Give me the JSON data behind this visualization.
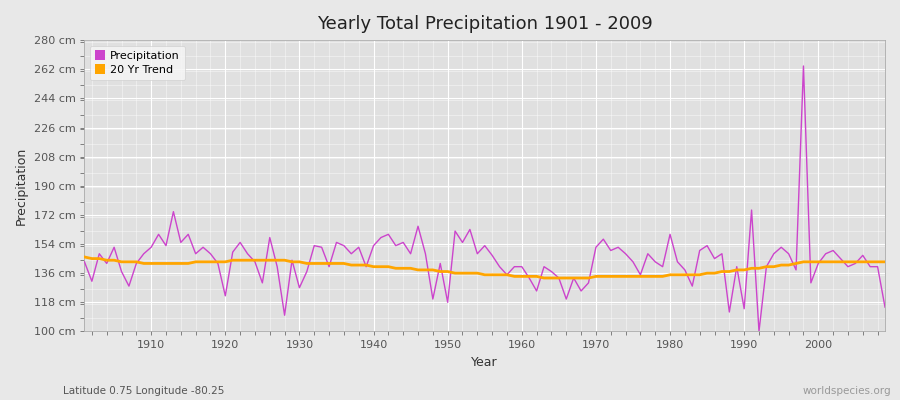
{
  "title": "Yearly Total Precipitation 1901 - 2009",
  "xlabel": "Year",
  "ylabel": "Precipitation",
  "subtitle": "Latitude 0.75 Longitude -80.25",
  "watermark": "worldspecies.org",
  "ylim": [
    100,
    280
  ],
  "yticks": [
    100,
    118,
    136,
    154,
    172,
    190,
    208,
    226,
    244,
    262,
    280
  ],
  "ytick_labels": [
    "100 cm",
    "118 cm",
    "136 cm",
    "154 cm",
    "172 cm",
    "190 cm",
    "208 cm",
    "226 cm",
    "244 cm",
    "262 cm",
    "280 cm"
  ],
  "xlim": [
    1901,
    2009
  ],
  "xticks": [
    1910,
    1920,
    1930,
    1940,
    1950,
    1960,
    1970,
    1980,
    1990,
    2000
  ],
  "precip_color": "#cc44cc",
  "trend_color": "#FFA500",
  "fig_bg_color": "#e8e8e8",
  "plot_bg_color": "#e0e0e0",
  "years": [
    1901,
    1902,
    1903,
    1904,
    1905,
    1906,
    1907,
    1908,
    1909,
    1910,
    1911,
    1912,
    1913,
    1914,
    1915,
    1916,
    1917,
    1918,
    1919,
    1920,
    1921,
    1922,
    1923,
    1924,
    1925,
    1926,
    1927,
    1928,
    1929,
    1930,
    1931,
    1932,
    1933,
    1934,
    1935,
    1936,
    1937,
    1938,
    1939,
    1940,
    1941,
    1942,
    1943,
    1944,
    1945,
    1946,
    1947,
    1948,
    1949,
    1950,
    1951,
    1952,
    1953,
    1954,
    1955,
    1956,
    1957,
    1958,
    1959,
    1960,
    1961,
    1962,
    1963,
    1964,
    1965,
    1966,
    1967,
    1968,
    1969,
    1970,
    1971,
    1972,
    1973,
    1974,
    1975,
    1976,
    1977,
    1978,
    1979,
    1980,
    1981,
    1982,
    1983,
    1984,
    1985,
    1986,
    1987,
    1988,
    1989,
    1990,
    1991,
    1992,
    1993,
    1994,
    1995,
    1996,
    1997,
    1998,
    1999,
    2000,
    2001,
    2002,
    2003,
    2004,
    2005,
    2006,
    2007,
    2008,
    2009
  ],
  "precip": [
    143,
    131,
    148,
    142,
    152,
    137,
    128,
    142,
    148,
    152,
    160,
    153,
    174,
    155,
    160,
    148,
    152,
    148,
    142,
    122,
    149,
    155,
    148,
    143,
    130,
    158,
    140,
    110,
    144,
    127,
    137,
    153,
    152,
    140,
    155,
    153,
    148,
    152,
    140,
    153,
    158,
    160,
    153,
    155,
    148,
    165,
    148,
    120,
    142,
    118,
    162,
    155,
    163,
    148,
    153,
    147,
    140,
    135,
    140,
    140,
    133,
    125,
    140,
    137,
    133,
    120,
    133,
    125,
    130,
    152,
    157,
    150,
    152,
    148,
    143,
    135,
    148,
    143,
    140,
    160,
    143,
    138,
    128,
    150,
    153,
    145,
    148,
    112,
    140,
    114,
    175,
    100,
    140,
    148,
    152,
    148,
    138,
    264,
    130,
    142,
    148,
    150,
    145,
    140,
    142,
    147,
    140,
    140,
    115
  ],
  "trend": [
    146,
    145,
    145,
    144,
    144,
    143,
    143,
    143,
    142,
    142,
    142,
    142,
    142,
    142,
    142,
    143,
    143,
    143,
    143,
    143,
    144,
    144,
    144,
    144,
    144,
    144,
    144,
    144,
    143,
    143,
    142,
    142,
    142,
    142,
    142,
    142,
    141,
    141,
    141,
    140,
    140,
    140,
    139,
    139,
    139,
    138,
    138,
    138,
    137,
    137,
    136,
    136,
    136,
    136,
    135,
    135,
    135,
    135,
    134,
    134,
    134,
    134,
    133,
    133,
    133,
    133,
    133,
    133,
    133,
    134,
    134,
    134,
    134,
    134,
    134,
    134,
    134,
    134,
    134,
    135,
    135,
    135,
    135,
    135,
    136,
    136,
    137,
    137,
    138,
    138,
    139,
    139,
    140,
    140,
    141,
    141,
    142,
    143,
    143,
    143,
    143,
    143,
    143,
    143,
    143,
    143,
    143,
    143,
    143
  ]
}
